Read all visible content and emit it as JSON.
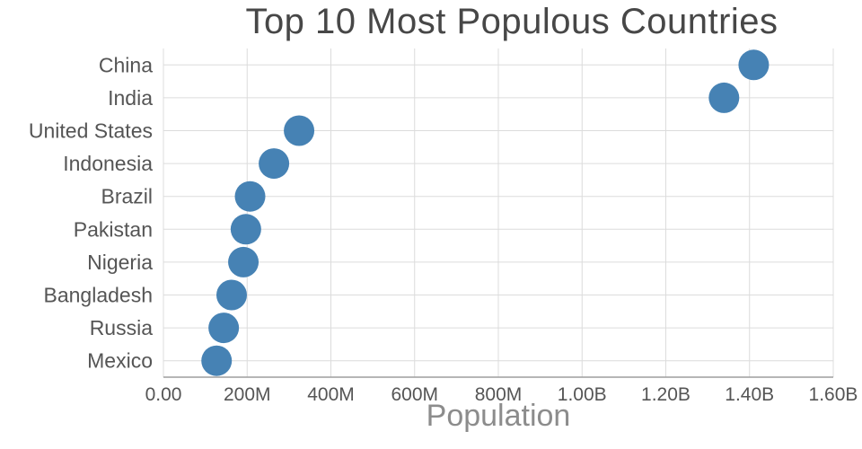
{
  "chart_data": {
    "type": "scatter",
    "title": "Top 10 Most Populous Countries",
    "xlabel": "Population",
    "ylabel": "",
    "categories": [
      "China",
      "India",
      "United States",
      "Indonesia",
      "Brazil",
      "Pakistan",
      "Nigeria",
      "Bangladesh",
      "Russia",
      "Mexico"
    ],
    "values_millions": [
      1410,
      1339,
      324,
      264,
      207,
      197,
      191,
      163,
      144,
      127
    ],
    "x_ticks": [
      {
        "value": 0,
        "label": "0.00"
      },
      {
        "value": 200000000,
        "label": "200M"
      },
      {
        "value": 400000000,
        "label": "400M"
      },
      {
        "value": 600000000,
        "label": "600M"
      },
      {
        "value": 800000000,
        "label": "800M"
      },
      {
        "value": 1000000000,
        "label": "1.00B"
      },
      {
        "value": 1200000000,
        "label": "1.20B"
      },
      {
        "value": 1400000000,
        "label": "1.40B"
      },
      {
        "value": 1600000000,
        "label": "1.60B"
      }
    ],
    "xlim": [
      0,
      1600000000
    ],
    "grid": true,
    "legend": "none",
    "marker_color": "#4682b4",
    "marker_radius": 17
  }
}
